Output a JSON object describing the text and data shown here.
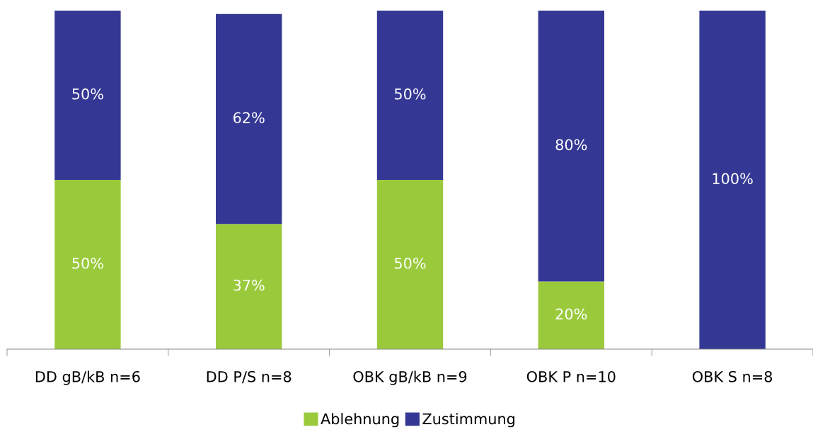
{
  "chart_data": {
    "type": "bar",
    "stacked": true,
    "categories": [
      "DD gB/kB n=6",
      "DD P/S n=8",
      "OBK gB/kB n=9",
      "OBK P n=10",
      "OBK S n=8"
    ],
    "series": [
      {
        "name": "Ablehnung",
        "color": "#9aca3c",
        "values": [
          50,
          37,
          50,
          20,
          0
        ],
        "value_labels": [
          "50%",
          "37%",
          "50%",
          "20%",
          null
        ]
      },
      {
        "name": "Zustimmung",
        "color": "#343894",
        "values": [
          50,
          62,
          50,
          80,
          100
        ],
        "value_labels": [
          "50%",
          "62%",
          "50%",
          "80%",
          "100%"
        ]
      }
    ],
    "legend": "bottom",
    "grid": false
  }
}
